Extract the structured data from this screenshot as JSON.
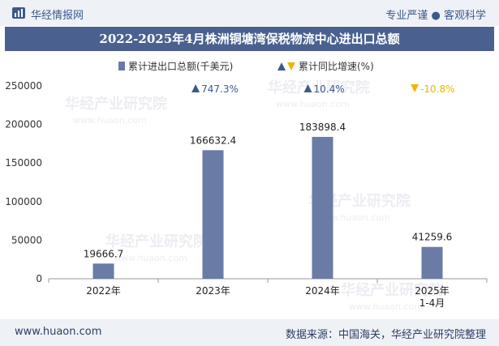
{
  "header": {
    "brand": "华经情报网",
    "tagline": "专业严谨 ● 客观科学"
  },
  "footer": {
    "website": "www.huaon.com",
    "source": "数据来源：中国海关，华经产业研究院整理"
  },
  "watermark": {
    "cn": "华经产业研究院",
    "en": "www.huaon.com"
  },
  "colors": {
    "bar": "#6a7ba5",
    "up": "#3b5a8c",
    "down": "#f0b400",
    "title_bg": "#4a6190"
  },
  "chart_data": {
    "type": "bar",
    "title": "2022-2025年4月株洲铜塘湾保税物流中心进出口总额",
    "categories": [
      "2022年",
      "2023年",
      "2024年",
      "2025年\n1-4月"
    ],
    "series": [
      {
        "name": "累计进出口总额(千美元)",
        "values": [
          19666.7,
          166632.4,
          183898.4,
          41259.6
        ],
        "labels": [
          "19666.7",
          "166632.4",
          "183898.4",
          "41259.6"
        ]
      },
      {
        "name": "累计同比增速(%)",
        "values": [
          null,
          747.3,
          10.4,
          -10.8
        ],
        "labels": [
          "",
          "747.3%",
          "10.4%",
          "-10.8%"
        ]
      }
    ],
    "yticks": [
      "0",
      "50000",
      "100000",
      "150000",
      "200000",
      "250000"
    ],
    "ylim": [
      0,
      250000
    ],
    "xlabel": "",
    "ylabel": "",
    "legend": {
      "bar_label": "累计进出口总额(千美元)",
      "growth_label": "累计同比增速(%)",
      "position": "top-center"
    }
  }
}
